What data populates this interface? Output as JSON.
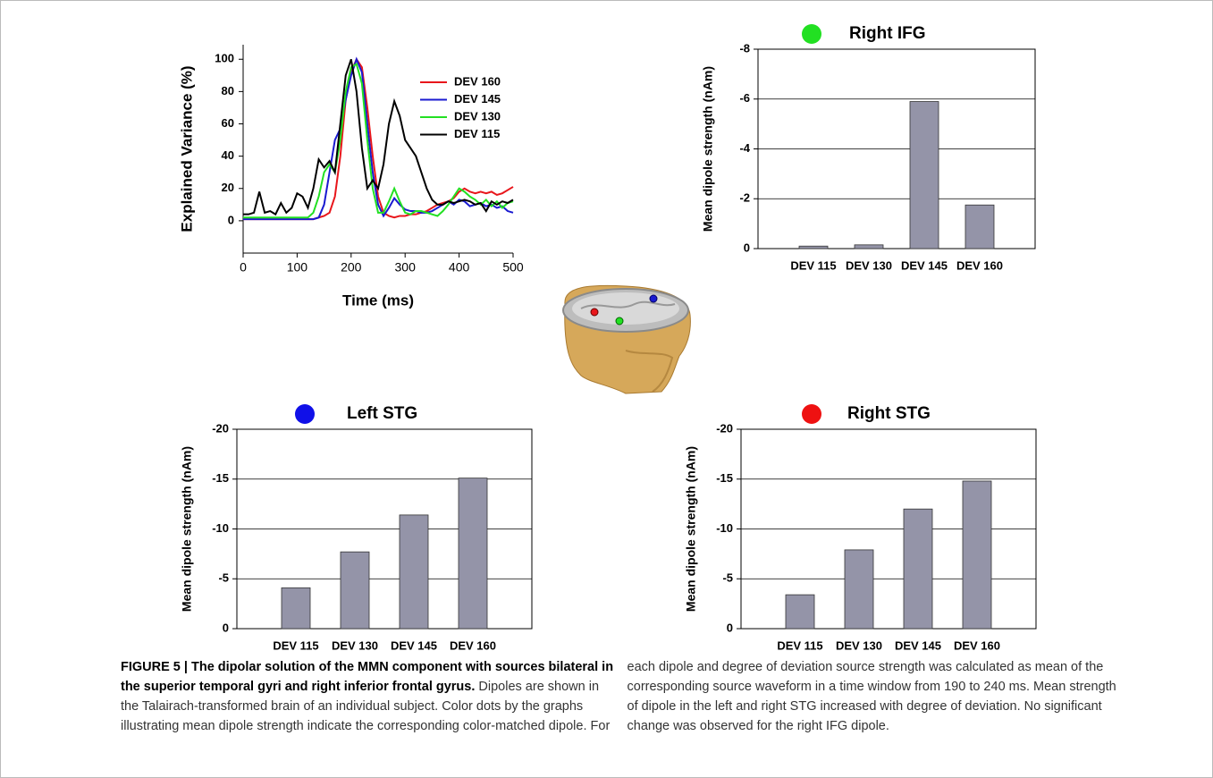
{
  "chart_data": [
    {
      "type": "line",
      "xlabel": "Time (ms)",
      "ylabel": "Explained Variance (%)",
      "x": [
        0,
        10,
        20,
        30,
        40,
        50,
        60,
        70,
        80,
        90,
        100,
        110,
        120,
        130,
        140,
        150,
        160,
        170,
        180,
        190,
        200,
        210,
        220,
        230,
        240,
        250,
        260,
        270,
        280,
        290,
        300,
        310,
        320,
        330,
        340,
        350,
        360,
        370,
        380,
        390,
        400,
        410,
        420,
        430,
        440,
        450,
        460,
        470,
        480,
        490,
        500
      ],
      "series": [
        {
          "name": "DEV 160",
          "color": "#e8161b",
          "values": [
            1,
            1,
            1,
            1,
            1,
            1,
            1,
            1,
            1,
            1,
            1,
            1,
            1,
            1,
            2,
            3,
            5,
            15,
            40,
            75,
            92,
            100,
            95,
            70,
            40,
            15,
            5,
            3,
            2,
            3,
            3,
            4,
            4,
            5,
            6,
            8,
            10,
            11,
            12,
            14,
            18,
            20,
            18,
            17,
            18,
            17,
            18,
            16,
            17,
            19,
            21
          ]
        },
        {
          "name": "DEV 145",
          "color": "#1a1ad0",
          "values": [
            1,
            1,
            1,
            1,
            1,
            1,
            1,
            1,
            1,
            1,
            1,
            1,
            1,
            1,
            2,
            10,
            30,
            50,
            57,
            75,
            90,
            100,
            92,
            60,
            30,
            10,
            3,
            8,
            14,
            10,
            7,
            6,
            6,
            5,
            5,
            6,
            8,
            10,
            12,
            10,
            13,
            12,
            9,
            10,
            11,
            9,
            10,
            8,
            9,
            6,
            5
          ]
        },
        {
          "name": "DEV 130",
          "color": "#22e022",
          "values": [
            2,
            2,
            2,
            2,
            2,
            2,
            2,
            2,
            2,
            2,
            2,
            2,
            2,
            5,
            15,
            30,
            35,
            30,
            50,
            80,
            95,
            97,
            85,
            50,
            20,
            5,
            5,
            12,
            20,
            12,
            5,
            4,
            6,
            6,
            5,
            4,
            3,
            6,
            10,
            15,
            20,
            18,
            15,
            13,
            10,
            13,
            9,
            12,
            8,
            11,
            12
          ]
        },
        {
          "name": "DEV 115",
          "color": "#000000",
          "values": [
            4,
            4,
            5,
            18,
            5,
            6,
            4,
            11,
            5,
            8,
            17,
            15,
            8,
            20,
            38,
            33,
            37,
            30,
            60,
            90,
            100,
            80,
            45,
            20,
            25,
            20,
            35,
            60,
            74,
            65,
            50,
            45,
            40,
            30,
            20,
            13,
            10,
            10,
            12,
            11,
            12,
            13,
            12,
            10,
            11,
            6,
            12,
            10,
            12,
            11,
            13
          ]
        }
      ],
      "xlim": [
        0,
        500
      ],
      "xticks": [
        0,
        100,
        200,
        300,
        400,
        500
      ],
      "ylim": [
        -20,
        109
      ],
      "yticks": [
        0,
        20,
        40,
        60,
        80,
        100
      ],
      "legend": "upper right"
    },
    {
      "type": "bar",
      "title": "Right IFG",
      "marker_color": "#22e022",
      "ylabel": "Mean dipole strength (nAm)",
      "categories": [
        "DEV 115",
        "DEV 130",
        "DEV 145",
        "DEV 160"
      ],
      "values": [
        -0.1,
        -0.15,
        -5.9,
        -1.75
      ],
      "color": "#9494a8",
      "ylim": [
        0,
        -8
      ],
      "yticks": [
        0,
        -2,
        -4,
        -6,
        -8
      ],
      "grid": true
    },
    {
      "type": "bar",
      "title": "Left STG",
      "marker_color": "#1010e8",
      "ylabel": "Mean dipole strength (nAm)",
      "categories": [
        "DEV 115",
        "DEV 130",
        "DEV 145",
        "DEV 160"
      ],
      "values": [
        -4.1,
        -7.7,
        -11.4,
        -15.1
      ],
      "color": "#9494a8",
      "ylim": [
        0,
        -20
      ],
      "yticks": [
        0,
        -5,
        -10,
        -15,
        -20
      ],
      "grid": true
    },
    {
      "type": "bar",
      "title": "Right STG",
      "marker_color": "#ee1111",
      "ylabel": "Mean dipole strength (nAm)",
      "categories": [
        "DEV 115",
        "DEV 130",
        "DEV 145",
        "DEV 160"
      ],
      "values": [
        -3.4,
        -7.9,
        -12.0,
        -14.8
      ],
      "color": "#9494a8",
      "ylim": [
        0,
        -20
      ],
      "yticks": [
        0,
        -5,
        -10,
        -15,
        -20
      ],
      "grid": true
    }
  ],
  "caption": {
    "heading": "FIGURE 5 | The dipolar solution of the MMN component with sources bilateral in the superior temporal gyri and right inferior frontal gyrus.",
    "text": "Dipoles are shown in the Talairach-transformed brain of an individual subject. Color dots by the graphs illustrating mean dipole strength indicate the corresponding color-matched dipole. For each dipole and degree of deviation source strength was calculated as mean of the corresponding source waveform in a time window from 190 to 240 ms. Mean strength of dipole in the left and right STG increased with degree of deviation. No significant change was observed for the right IFG dipole."
  }
}
